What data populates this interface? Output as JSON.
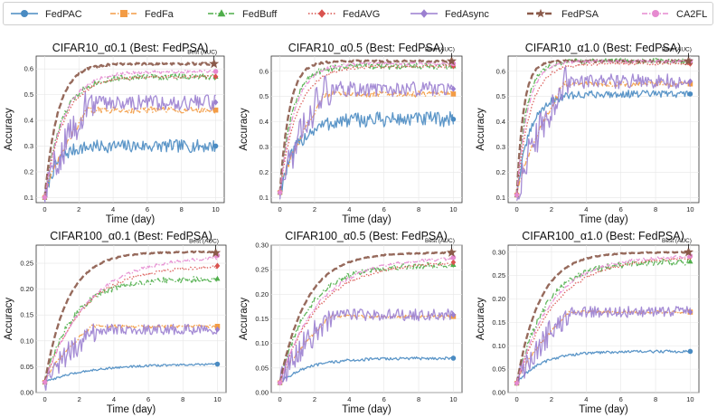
{
  "legend": [
    {
      "name": "FedPAC",
      "color": "#4a8bc2",
      "marker": "circle",
      "dash": "solid"
    },
    {
      "name": "FedFa",
      "color": "#f39c45",
      "marker": "square",
      "dash": "dashdot"
    },
    {
      "name": "FedBuff",
      "color": "#4fae4a",
      "marker": "triangle",
      "dash": "dashdot"
    },
    {
      "name": "FedAVG",
      "color": "#d9534f",
      "marker": "diamond",
      "dash": "dotted"
    },
    {
      "name": "FedAsync",
      "color": "#9b7fd0",
      "marker": "diamond",
      "dash": "solid"
    },
    {
      "name": "FedPSA",
      "color": "#8b5a4a",
      "marker": "star",
      "dash": "dashed"
    },
    {
      "name": "CA2FL",
      "color": "#e68ad0",
      "marker": "circle",
      "dash": "dashdot"
    }
  ],
  "chart_data": [
    {
      "type": "line",
      "title": "CIFAR10_α0.1 (Best: FedPSA)",
      "xlabel": "Time (day)",
      "ylabel": "Accuracy",
      "xlim": [
        -0.5,
        10.5
      ],
      "ylim": [
        0.08,
        0.65
      ],
      "xticks": [
        "0",
        "2",
        "4",
        "6",
        "8",
        "10"
      ],
      "yticks": [
        "0.1",
        "0.2",
        "0.3",
        "0.4",
        "0.5",
        "0.6"
      ],
      "annotation": "Best (AUC)",
      "best_point": {
        "x": 9.9,
        "y": 0.62
      },
      "series": [
        {
          "name": "FedPAC",
          "start": 0.1,
          "final": 0.3,
          "rate": 1.5,
          "noise": 0.025
        },
        {
          "name": "FedFa",
          "start": 0.1,
          "final": 0.44,
          "rate": 1.2,
          "noise": 0.012,
          "plateau": 2.5
        },
        {
          "name": "FedBuff",
          "start": 0.1,
          "final": 0.57,
          "rate": 1.0,
          "noise": 0.012
        },
        {
          "name": "FedAVG",
          "start": 0.1,
          "final": 0.57,
          "rate": 0.9,
          "noise": 0.006
        },
        {
          "name": "FedAsync",
          "start": 0.1,
          "final": 0.47,
          "rate": 1.3,
          "noise": 0.03,
          "plateau": 2.6
        },
        {
          "name": "FedPSA",
          "start": 0.1,
          "final": 0.62,
          "rate": 1.3,
          "noise": 0.004
        },
        {
          "name": "CA2FL",
          "start": 0.1,
          "final": 0.59,
          "rate": 0.9,
          "noise": 0.006
        }
      ]
    },
    {
      "type": "line",
      "title": "CIFAR10_α0.5 (Best: FedPSA)",
      "xlabel": "Time (day)",
      "ylabel": "Accuracy",
      "xlim": [
        -0.5,
        10.5
      ],
      "ylim": [
        0.08,
        0.66
      ],
      "xticks": [
        "0",
        "2",
        "4",
        "6",
        "8",
        "10"
      ],
      "yticks": [
        "0.1",
        "0.2",
        "0.3",
        "0.4",
        "0.5",
        "0.6"
      ],
      "annotation": "Best (AUC)",
      "best_point": {
        "x": 9.9,
        "y": 0.64
      },
      "series": [
        {
          "name": "FedPAC",
          "start": 0.12,
          "final": 0.41,
          "rate": 1.0,
          "noise": 0.03
        },
        {
          "name": "FedFa",
          "start": 0.12,
          "final": 0.51,
          "rate": 1.2,
          "noise": 0.012,
          "plateau": 2.6
        },
        {
          "name": "FedBuff",
          "start": 0.12,
          "final": 0.62,
          "rate": 1.4,
          "noise": 0.012
        },
        {
          "name": "FedAVG",
          "start": 0.12,
          "final": 0.62,
          "rate": 1.0,
          "noise": 0.006
        },
        {
          "name": "FedAsync",
          "start": 0.12,
          "final": 0.53,
          "rate": 1.3,
          "noise": 0.03,
          "plateau": 2.6
        },
        {
          "name": "FedPSA",
          "start": 0.12,
          "final": 0.64,
          "rate": 1.8,
          "noise": 0.004
        },
        {
          "name": "CA2FL",
          "start": 0.12,
          "final": 0.63,
          "rate": 1.2,
          "noise": 0.006
        }
      ]
    },
    {
      "type": "line",
      "title": "CIFAR10_α1.0 (Best: FedPSA)",
      "xlabel": "Time (day)",
      "ylabel": "Accuracy",
      "xlim": [
        -0.5,
        10.5
      ],
      "ylim": [
        0.08,
        0.66
      ],
      "xticks": [
        "0",
        "2",
        "4",
        "6",
        "8",
        "10"
      ],
      "yticks": [
        "0.1",
        "0.2",
        "0.3",
        "0.4",
        "0.5",
        "0.6"
      ],
      "annotation": "Best (AUC)",
      "best_point": {
        "x": 9.9,
        "y": 0.64
      },
      "series": [
        {
          "name": "FedPAC",
          "start": 0.11,
          "final": 0.51,
          "rate": 1.3,
          "noise": 0.015
        },
        {
          "name": "FedFa",
          "start": 0.11,
          "final": 0.55,
          "rate": 1.3,
          "noise": 0.01,
          "plateau": 2.7
        },
        {
          "name": "FedBuff",
          "start": 0.11,
          "final": 0.64,
          "rate": 1.8,
          "noise": 0.01
        },
        {
          "name": "FedAVG",
          "start": 0.11,
          "final": 0.63,
          "rate": 1.3,
          "noise": 0.006
        },
        {
          "name": "FedAsync",
          "start": 0.11,
          "final": 0.56,
          "rate": 1.3,
          "noise": 0.03,
          "plateau": 2.8
        },
        {
          "name": "FedPSA",
          "start": 0.11,
          "final": 0.64,
          "rate": 2.5,
          "noise": 0.004
        },
        {
          "name": "CA2FL",
          "start": 0.11,
          "final": 0.64,
          "rate": 1.6,
          "noise": 0.006
        }
      ]
    },
    {
      "type": "line",
      "title": "CIFAR100_α0.1 (Best: FedPSA)",
      "xlabel": "Time (day)",
      "ylabel": "Accuracy",
      "xlim": [
        -0.5,
        10.5
      ],
      "ylim": [
        0.0,
        0.285
      ],
      "xticks": [
        "0",
        "2",
        "4",
        "6",
        "8",
        "10"
      ],
      "yticks": [
        "0.00",
        "0.05",
        "0.10",
        "0.15",
        "0.20",
        "0.25"
      ],
      "annotation": "Best (AUC)",
      "best_point": {
        "x": 9.9,
        "y": 0.27
      },
      "series": [
        {
          "name": "FedPAC",
          "start": 0.02,
          "final": 0.055,
          "rate": 0.4,
          "noise": 0.002
        },
        {
          "name": "FedFa",
          "start": 0.02,
          "final": 0.128,
          "rate": 0.8,
          "noise": 0.003,
          "plateau": 2.7
        },
        {
          "name": "FedBuff",
          "start": 0.02,
          "final": 0.22,
          "rate": 0.6,
          "noise": 0.006
        },
        {
          "name": "FedAVG",
          "start": 0.02,
          "final": 0.245,
          "rate": 0.45,
          "noise": 0.003
        },
        {
          "name": "FedAsync",
          "start": 0.02,
          "final": 0.122,
          "rate": 0.9,
          "noise": 0.01,
          "plateau": 3.0
        },
        {
          "name": "FedPSA",
          "start": 0.02,
          "final": 0.272,
          "rate": 0.75,
          "noise": 0.001
        },
        {
          "name": "CA2FL",
          "start": 0.02,
          "final": 0.265,
          "rate": 0.4,
          "noise": 0.003
        }
      ]
    },
    {
      "type": "line",
      "title": "CIFAR100_α0.5 (Best: FedPSA)",
      "xlabel": "Time (day)",
      "ylabel": "Accuracy",
      "xlim": [
        -0.5,
        10.5
      ],
      "ylim": [
        0.0,
        0.3
      ],
      "xticks": [
        "0",
        "2",
        "4",
        "6",
        "8",
        "10"
      ],
      "yticks": [
        "0.00",
        "0.05",
        "0.10",
        "0.15",
        "0.20",
        "0.25",
        "0.30"
      ],
      "annotation": "Best (AUC)",
      "best_point": {
        "x": 9.9,
        "y": 0.285
      },
      "series": [
        {
          "name": "FedPAC",
          "start": 0.02,
          "final": 0.07,
          "rate": 0.6,
          "noise": 0.003
        },
        {
          "name": "FedFa",
          "start": 0.02,
          "final": 0.155,
          "rate": 0.9,
          "noise": 0.003,
          "plateau": 2.9
        },
        {
          "name": "FedBuff",
          "start": 0.02,
          "final": 0.26,
          "rate": 0.6,
          "noise": 0.006
        },
        {
          "name": "FedAVG",
          "start": 0.02,
          "final": 0.265,
          "rate": 0.45,
          "noise": 0.003
        },
        {
          "name": "FedAsync",
          "start": 0.02,
          "final": 0.158,
          "rate": 0.9,
          "noise": 0.012,
          "plateau": 3.0
        },
        {
          "name": "FedPSA",
          "start": 0.02,
          "final": 0.285,
          "rate": 0.65,
          "noise": 0.001
        },
        {
          "name": "CA2FL",
          "start": 0.02,
          "final": 0.275,
          "rate": 0.45,
          "noise": 0.003
        }
      ]
    },
    {
      "type": "line",
      "title": "CIFAR100_α1.0 (Best: FedPSA)",
      "xlabel": "Time (day)",
      "ylabel": "Accuracy",
      "xlim": [
        -0.5,
        10.5
      ],
      "ylim": [
        0.0,
        0.315
      ],
      "xticks": [
        "0",
        "2",
        "4",
        "6",
        "8",
        "10"
      ],
      "yticks": [
        "0.00",
        "0.05",
        "0.10",
        "0.15",
        "0.20",
        "0.25",
        "0.30"
      ],
      "annotation": "Best (AUC)",
      "best_point": {
        "x": 9.9,
        "y": 0.3
      },
      "series": [
        {
          "name": "FedPAC",
          "start": 0.02,
          "final": 0.088,
          "rate": 0.7,
          "noise": 0.003
        },
        {
          "name": "FedFa",
          "start": 0.02,
          "final": 0.172,
          "rate": 0.9,
          "noise": 0.003,
          "plateau": 3.0
        },
        {
          "name": "FedBuff",
          "start": 0.02,
          "final": 0.28,
          "rate": 0.6,
          "noise": 0.007
        },
        {
          "name": "FedAVG",
          "start": 0.02,
          "final": 0.29,
          "rate": 0.45,
          "noise": 0.003
        },
        {
          "name": "FedAsync",
          "start": 0.02,
          "final": 0.172,
          "rate": 1.0,
          "noise": 0.012,
          "plateau": 3.0
        },
        {
          "name": "FedPSA",
          "start": 0.02,
          "final": 0.3,
          "rate": 0.75,
          "noise": 0.001
        },
        {
          "name": "CA2FL",
          "start": 0.02,
          "final": 0.292,
          "rate": 0.5,
          "noise": 0.003
        }
      ]
    }
  ]
}
